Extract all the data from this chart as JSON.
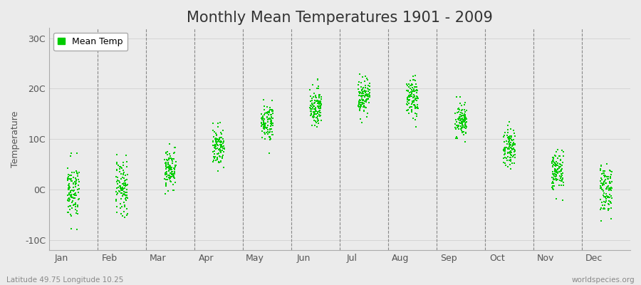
{
  "title": "Monthly Mean Temperatures 1901 - 2009",
  "ylabel": "Temperature",
  "xlabel_labels": [
    "Jan",
    "Feb",
    "Mar",
    "Apr",
    "May",
    "Jun",
    "Jul",
    "Aug",
    "Sep",
    "Oct",
    "Nov",
    "Dec"
  ],
  "ytick_labels": [
    "-10C",
    "0C",
    "10C",
    "20C",
    "30C"
  ],
  "ytick_values": [
    -10,
    0,
    10,
    20,
    30
  ],
  "ylim": [
    -12,
    32
  ],
  "xlim": [
    0,
    12
  ],
  "marker_color": "#00CC00",
  "marker_size": 4,
  "background_color": "#EBEBEB",
  "plot_bg_color": "#EBEBEB",
  "legend_label": "Mean Temp",
  "footer_left": "Latitude 49.75 Longitude 10.25",
  "footer_right": "worldspecies.org",
  "title_fontsize": 15,
  "label_fontsize": 9,
  "tick_fontsize": 9,
  "monthly_means": [
    -0.5,
    0.2,
    4.2,
    8.5,
    13.5,
    16.5,
    18.5,
    18.0,
    13.5,
    8.5,
    3.5,
    0.2
  ],
  "monthly_stds": [
    2.8,
    2.8,
    2.0,
    1.8,
    1.8,
    1.8,
    1.8,
    2.0,
    1.8,
    1.8,
    2.0,
    2.5
  ],
  "years": 109,
  "seed": 42,
  "x_jitter": 0.12
}
